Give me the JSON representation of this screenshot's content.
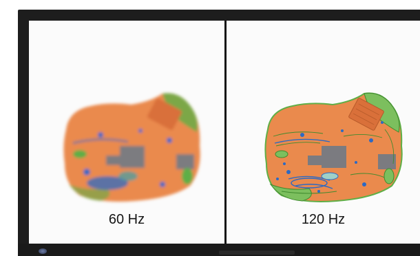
{
  "panels": [
    {
      "label": "60 Hz"
    },
    {
      "label": "120 Hz"
    }
  ],
  "colors": {
    "bezel": "#1d1d1d",
    "screen": "#fbfbfb",
    "terrain_orange": "#ea8a4d",
    "contour_green": "#5fae46",
    "water_blue": "#2c69c3",
    "block_gray": "#7b7b80"
  }
}
